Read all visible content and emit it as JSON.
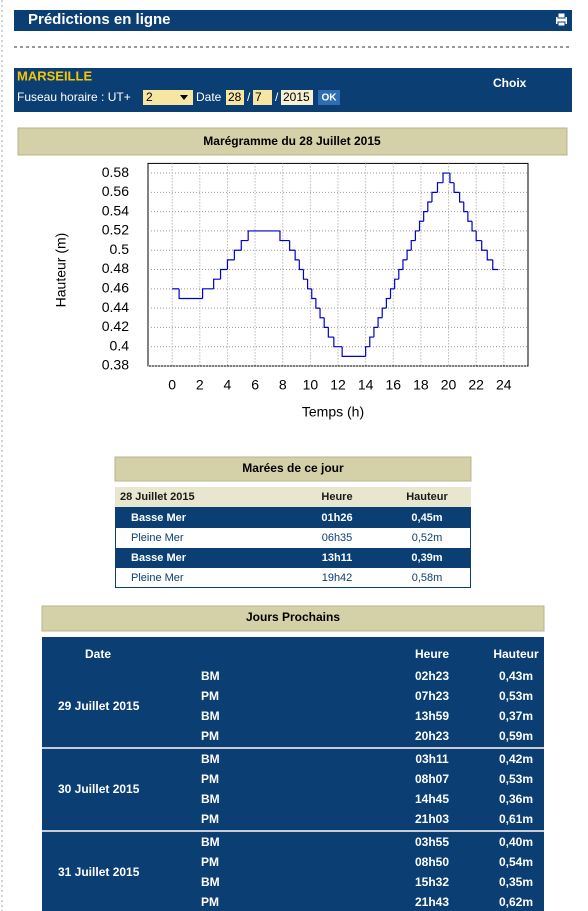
{
  "header": {
    "title": "Prédictions en ligne"
  },
  "form": {
    "port": "MARSEILLE",
    "choice_label": "Choix",
    "timezone_label": "Fuseau horaire : UT+",
    "timezone": "2",
    "date_label": "Date",
    "day": "28",
    "month": "7",
    "year": "2015",
    "separator": "/",
    "button": "OK"
  },
  "chart_panel": {
    "title": "Marégramme du 28 Juillet 2015"
  },
  "chart_data": {
    "type": "line",
    "step": "post",
    "grid": true,
    "xlabel": "Temps (h)",
    "ylabel": "Hauteur (m)",
    "x": [
      0,
      0.5,
      2.2,
      3.0,
      3.5,
      4.0,
      4.5,
      5.0,
      5.5,
      7.8,
      8.5,
      8.9,
      9.2,
      9.5,
      9.8,
      10.1,
      10.4,
      10.7,
      11.0,
      11.3,
      11.7,
      12.3,
      14.0,
      14.3,
      14.6,
      14.9,
      15.2,
      15.5,
      15.8,
      16.1,
      16.4,
      16.7,
      17.0,
      17.3,
      17.6,
      17.9,
      18.2,
      18.5,
      18.8,
      19.2,
      19.6,
      20.1,
      20.4,
      20.8,
      21.1,
      21.4,
      21.7,
      22.0,
      22.4,
      22.8,
      23.2,
      23.6
    ],
    "series": [
      {
        "color": "#0000cc",
        "values": [
          0.46,
          0.45,
          0.46,
          0.47,
          0.48,
          0.49,
          0.5,
          0.51,
          0.52,
          0.51,
          0.5,
          0.49,
          0.48,
          0.47,
          0.46,
          0.45,
          0.44,
          0.43,
          0.42,
          0.41,
          0.4,
          0.39,
          0.4,
          0.41,
          0.42,
          0.43,
          0.44,
          0.45,
          0.46,
          0.47,
          0.48,
          0.49,
          0.5,
          0.51,
          0.52,
          0.53,
          0.54,
          0.55,
          0.56,
          0.57,
          0.58,
          0.57,
          0.56,
          0.55,
          0.54,
          0.53,
          0.52,
          0.51,
          0.5,
          0.49,
          0.48,
          0.48
        ]
      }
    ],
    "xlim": [
      -1.75,
      25.75
    ],
    "xticks": [
      0,
      2,
      4,
      6,
      8,
      10,
      12,
      14,
      16,
      18,
      20,
      22,
      24
    ],
    "ylim": [
      0.38,
      0.59
    ],
    "yticks": [
      0.38,
      0.4,
      0.42,
      0.44,
      0.46,
      0.48,
      0.5,
      0.52,
      0.54,
      0.56,
      0.58
    ]
  },
  "today": {
    "title": "Marées de ce jour",
    "columns": [
      "28 Juillet 2015",
      "Heure",
      "Hauteur"
    ],
    "rows": [
      [
        "Basse Mer",
        "01h26",
        "0,45m"
      ],
      [
        "Pleine Mer",
        "06h35",
        "0,52m"
      ],
      [
        "Basse Mer",
        "13h11",
        "0,39m"
      ],
      [
        "Pleine Mer",
        "19h42",
        "0,58m"
      ]
    ]
  },
  "next_days": {
    "title": "Jours Prochains",
    "columns": [
      "Date",
      "Heure",
      "Hauteur"
    ],
    "groups": [
      {
        "date": "29 Juillet 2015",
        "rows": [
          [
            "BM",
            "02h23",
            "0,43m"
          ],
          [
            "PM",
            "07h23",
            "0,53m"
          ],
          [
            "BM",
            "13h59",
            "0,37m"
          ],
          [
            "PM",
            "20h23",
            "0,59m"
          ]
        ]
      },
      {
        "date": "30 Juillet 2015",
        "rows": [
          [
            "BM",
            "03h11",
            "0,42m"
          ],
          [
            "PM",
            "08h07",
            "0,53m"
          ],
          [
            "BM",
            "14h45",
            "0,36m"
          ],
          [
            "PM",
            "21h03",
            "0,61m"
          ]
        ]
      },
      {
        "date": "31 Juillet 2015",
        "rows": [
          [
            "BM",
            "03h55",
            "0,40m"
          ],
          [
            "PM",
            "08h50",
            "0,54m"
          ],
          [
            "BM",
            "15h32",
            "0,35m"
          ],
          [
            "PM",
            "21h43",
            "0,62m"
          ]
        ]
      }
    ]
  }
}
